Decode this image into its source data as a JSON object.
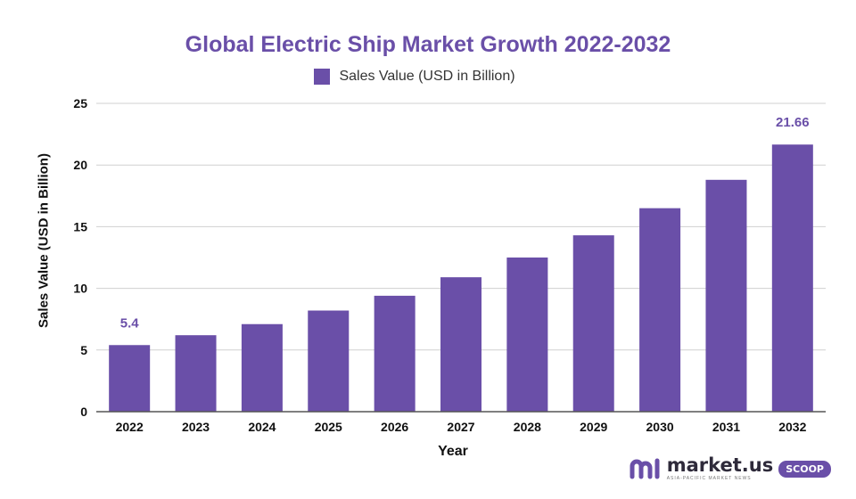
{
  "chart_data": {
    "type": "bar",
    "title": "Global Electric Ship Market Growth 2022-2032",
    "xlabel": "Year",
    "ylabel": "Sales Value (USD in Billion)",
    "categories": [
      "2022",
      "2023",
      "2024",
      "2025",
      "2026",
      "2027",
      "2028",
      "2029",
      "2030",
      "2031",
      "2032"
    ],
    "series": [
      {
        "name": "Sales Value (USD in Billion)",
        "values": [
          5.4,
          6.2,
          7.1,
          8.2,
          9.4,
          10.9,
          12.5,
          14.3,
          16.5,
          18.8,
          21.66
        ]
      }
    ],
    "data_labels": [
      {
        "category": "2022",
        "text": "5.4"
      },
      {
        "category": "2032",
        "text": "21.66"
      }
    ],
    "ylim": [
      0,
      25
    ],
    "yticks": [
      0,
      5,
      10,
      15,
      20,
      25
    ],
    "grid": true,
    "legend": "top-center",
    "colors": {
      "bar": "#6a4fa8",
      "grid": "#d0d0d0",
      "axis": "#555555",
      "title": "#6a4fa8"
    }
  },
  "branding": {
    "name": "market.us",
    "tagline": "ASIA-PACIFIC MARKET NEWS",
    "badge": "SCOOP"
  }
}
